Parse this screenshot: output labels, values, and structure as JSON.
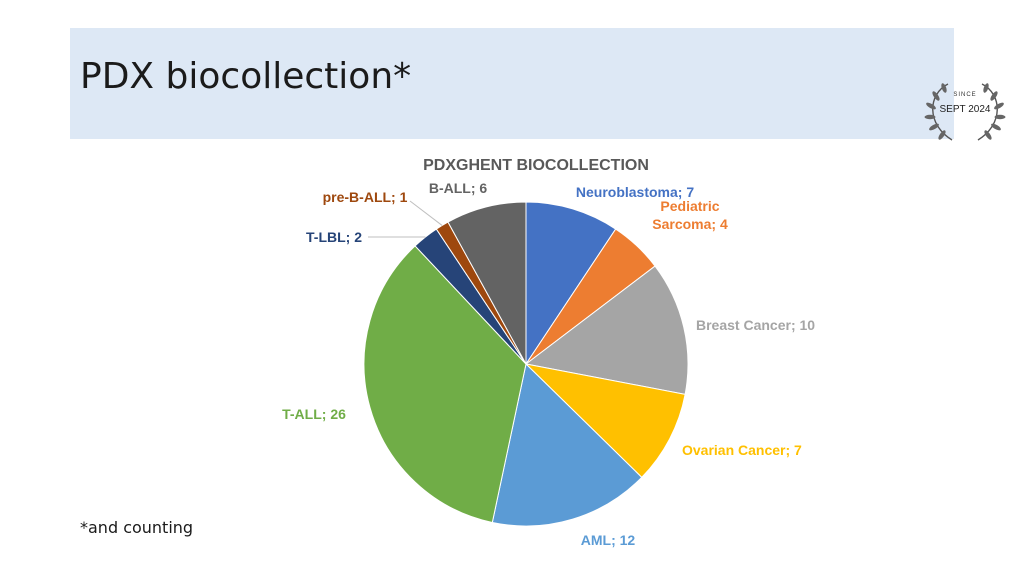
{
  "slide": {
    "title": "PDX biocollection*",
    "footnote": "*and counting",
    "badge": {
      "since": "SINCE",
      "date": "SEPT 2024"
    }
  },
  "colors": {
    "title_band": "#dde8f5",
    "chart_title": "#595959"
  },
  "chart_data": {
    "type": "pie",
    "title": "PDXGHENT BIOCOLLECTION",
    "start": "12 o'clock, clockwise",
    "slices": [
      {
        "label": "Neuroblastoma",
        "value": 7,
        "color": "#4472c4",
        "text": "Neuroblastoma; 7"
      },
      {
        "label": "Pediatric Sarcoma",
        "value": 4,
        "color": "#ed7d31",
        "text": "Pediatric Sarcoma; 4",
        "lines": [
          "Pediatric",
          "Sarcoma; 4"
        ]
      },
      {
        "label": "Breast Cancer",
        "value": 10,
        "color": "#a5a5a5",
        "text": "Breast Cancer; 10"
      },
      {
        "label": "Ovarian Cancer",
        "value": 7,
        "color": "#ffc000",
        "text": "Ovarian Cancer; 7"
      },
      {
        "label": "AML",
        "value": 12,
        "color": "#5b9bd5",
        "text": "AML; 12"
      },
      {
        "label": "T-ALL",
        "value": 26,
        "color": "#70ad47",
        "text": "T-ALL; 26"
      },
      {
        "label": "T-LBL",
        "value": 2,
        "color": "#264478",
        "text": "T-LBL; 2"
      },
      {
        "label": "pre-B-ALL",
        "value": 1,
        "color": "#9e480e",
        "text": "pre-B-ALL; 1"
      },
      {
        "label": "B-ALL",
        "value": 6,
        "color": "#636363",
        "text": "B-ALL; 6"
      }
    ]
  }
}
